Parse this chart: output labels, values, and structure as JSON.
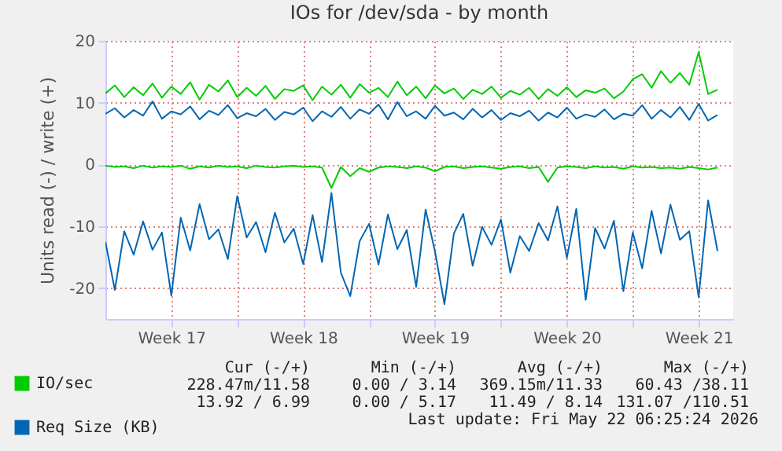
{
  "chart_data": {
    "type": "line",
    "title": "IOs for /dev/sda - by month",
    "ylabel": "Units read (-) / write (+)",
    "x": [
      "2026-04-20T00:00",
      "2026-04-20T12:00",
      "2026-04-21T00:00",
      "2026-04-21T12:00",
      "2026-04-22T00:00",
      "2026-04-22T12:00",
      "2026-04-23T00:00",
      "2026-04-23T12:00",
      "2026-04-24T00:00",
      "2026-04-24T12:00",
      "2026-04-25T00:00",
      "2026-04-25T12:00",
      "2026-04-26T00:00",
      "2026-04-26T12:00",
      "2026-04-27T00:00",
      "2026-04-27T12:00",
      "2026-04-28T00:00",
      "2026-04-28T12:00",
      "2026-04-29T00:00",
      "2026-04-29T12:00",
      "2026-04-30T00:00",
      "2026-04-30T12:00",
      "2026-05-01T00:00",
      "2026-05-01T12:00",
      "2026-05-02T00:00",
      "2026-05-02T12:00",
      "2026-05-03T00:00",
      "2026-05-03T12:00",
      "2026-05-04T00:00",
      "2026-05-04T12:00",
      "2026-05-05T00:00",
      "2026-05-05T12:00",
      "2026-05-06T00:00",
      "2026-05-06T12:00",
      "2026-05-07T00:00",
      "2026-05-07T12:00",
      "2026-05-08T00:00",
      "2026-05-08T12:00",
      "2026-05-09T00:00",
      "2026-05-09T12:00",
      "2026-05-10T00:00",
      "2026-05-10T12:00",
      "2026-05-11T00:00",
      "2026-05-11T12:00",
      "2026-05-12T00:00",
      "2026-05-12T12:00",
      "2026-05-13T00:00",
      "2026-05-13T12:00",
      "2026-05-14T00:00",
      "2026-05-14T12:00",
      "2026-05-15T00:00",
      "2026-05-15T12:00",
      "2026-05-16T00:00",
      "2026-05-16T12:00",
      "2026-05-17T00:00",
      "2026-05-17T12:00",
      "2026-05-18T00:00",
      "2026-05-18T12:00",
      "2026-05-19T00:00",
      "2026-05-19T12:00",
      "2026-05-20T00:00",
      "2026-05-20T12:00",
      "2026-05-21T00:00",
      "2026-05-21T12:00",
      "2026-05-22T00:00",
      "2026-05-22T12:00"
    ],
    "series": [
      {
        "name": "IO/sec",
        "color": "#00cc00",
        "values": [
          11.5,
          12.8,
          10.9,
          12.5,
          11.2,
          13.1,
          10.8,
          12.6,
          11.4,
          13.3,
          10.5,
          12.9,
          11.8,
          13.6,
          10.9,
          12.4,
          11.1,
          12.7,
          10.6,
          12.2,
          11.9,
          12.8,
          10.4,
          12.6,
          11.3,
          12.9,
          10.8,
          13.0,
          11.6,
          12.4,
          10.9,
          13.4,
          11.2,
          12.6,
          10.7,
          12.8,
          11.5,
          12.3,
          10.6,
          12.1,
          11.4,
          12.6,
          10.8,
          11.9,
          11.3,
          12.4,
          10.6,
          12.2,
          11.1,
          12.5,
          10.9,
          12.0,
          11.6,
          12.3,
          10.7,
          11.8,
          13.8,
          14.6,
          12.4,
          15.1,
          13.2,
          14.8,
          12.9,
          18.2,
          11.4,
          12.1
        ]
      },
      {
        "name": "Req Size (KB)",
        "color": "#0066b3",
        "values": [
          8.2,
          9.1,
          7.6,
          8.8,
          7.9,
          10.2,
          7.4,
          8.6,
          8.1,
          9.4,
          7.3,
          8.7,
          8.0,
          9.6,
          7.5,
          8.3,
          7.8,
          9.0,
          7.2,
          8.5,
          8.1,
          9.2,
          7.0,
          8.6,
          7.7,
          9.3,
          7.4,
          8.9,
          8.2,
          9.7,
          7.3,
          10.1,
          7.8,
          8.6,
          7.4,
          9.5,
          7.9,
          8.4,
          7.3,
          9.0,
          7.6,
          8.8,
          7.2,
          8.3,
          7.8,
          8.7,
          7.1,
          8.4,
          7.6,
          9.2,
          7.4,
          8.1,
          7.7,
          8.9,
          7.3,
          8.2,
          7.9,
          9.6,
          7.4,
          8.8,
          7.6,
          9.3,
          7.2,
          9.8,
          7.1,
          8.0
        ]
      },
      {
        "color": "#00cc00",
        "values": [
          -0.2,
          -0.4,
          -0.3,
          -0.6,
          -0.2,
          -0.5,
          -0.3,
          -0.4,
          -0.2,
          -0.7,
          -0.3,
          -0.5,
          -0.2,
          -0.4,
          -0.3,
          -0.6,
          -0.2,
          -0.4,
          -0.5,
          -0.3,
          -0.2,
          -0.4,
          -0.3,
          -0.5,
          -3.8,
          -0.4,
          -1.9,
          -0.6,
          -1.2,
          -0.5,
          -0.3,
          -0.4,
          -0.6,
          -0.3,
          -0.5,
          -1.1,
          -0.4,
          -0.3,
          -0.6,
          -0.4,
          -0.3,
          -0.5,
          -0.7,
          -0.4,
          -0.3,
          -0.6,
          -0.4,
          -2.8,
          -0.5,
          -0.3,
          -0.4,
          -0.6,
          -0.3,
          -0.5,
          -0.4,
          -0.7,
          -0.3,
          -0.5,
          -0.4,
          -0.6,
          -0.5,
          -0.7,
          -0.4,
          -0.6,
          -0.8,
          -0.5
        ]
      },
      {
        "color": "#0066b3",
        "values": [
          -12.5,
          -20.3,
          -10.8,
          -14.6,
          -9.2,
          -13.8,
          -11.0,
          -21.2,
          -8.6,
          -13.9,
          -6.4,
          -12.1,
          -10.5,
          -15.3,
          -5.1,
          -11.8,
          -9.3,
          -14.2,
          -7.8,
          -12.6,
          -10.4,
          -16.1,
          -8.2,
          -15.8,
          -4.6,
          -17.5,
          -21.3,
          -12.4,
          -9.6,
          -16.2,
          -8.1,
          -13.7,
          -10.6,
          -19.8,
          -7.3,
          -14.1,
          -22.6,
          -11.2,
          -8.0,
          -16.4,
          -10.1,
          -13.0,
          -8.9,
          -17.5,
          -11.6,
          -14.0,
          -9.5,
          -12.3,
          -6.8,
          -15.1,
          -7.2,
          -21.9,
          -10.3,
          -13.6,
          -9.1,
          -20.5,
          -11.0,
          -16.8,
          -7.5,
          -14.4,
          -6.5,
          -12.2,
          -10.8,
          -21.5,
          -5.8,
          -14.0
        ]
      }
    ],
    "xlim": [
      "2026-04-20T00:00",
      "2026-05-23T08:00"
    ],
    "xticks": [
      {
        "value": "2026-04-23T12:00",
        "label": "Week 17"
      },
      {
        "value": "2026-04-27T00:00",
        "label": null
      },
      {
        "value": "2026-04-30T12:00",
        "label": "Week 18"
      },
      {
        "value": "2026-05-04T00:00",
        "label": null
      },
      {
        "value": "2026-05-07T12:00",
        "label": "Week 19"
      },
      {
        "value": "2026-05-11T00:00",
        "label": null
      },
      {
        "value": "2026-05-14T12:00",
        "label": "Week 20"
      },
      {
        "value": "2026-05-18T00:00",
        "label": null
      },
      {
        "value": "2026-05-21T12:00",
        "label": "Week 21"
      }
    ],
    "ylim": [
      -25,
      20
    ],
    "yticks": [
      -20,
      -10,
      0,
      10,
      20
    ],
    "grid": true,
    "legend": "bottom left",
    "annotations": [
      "Cur (-/+)",
      "Min (-/+)",
      "Avg (-/+)",
      "Max (-/+)",
      "228.47m/11.58",
      "0.00 / 3.14",
      "369.15m/11.33",
      "60.43 /38.11",
      "13.92 / 6.99",
      "0.00 / 5.17",
      "11.49 / 8.14",
      "131.07 /110.51",
      "Last update: Fri May 22 06:25:24 2026"
    ]
  }
}
